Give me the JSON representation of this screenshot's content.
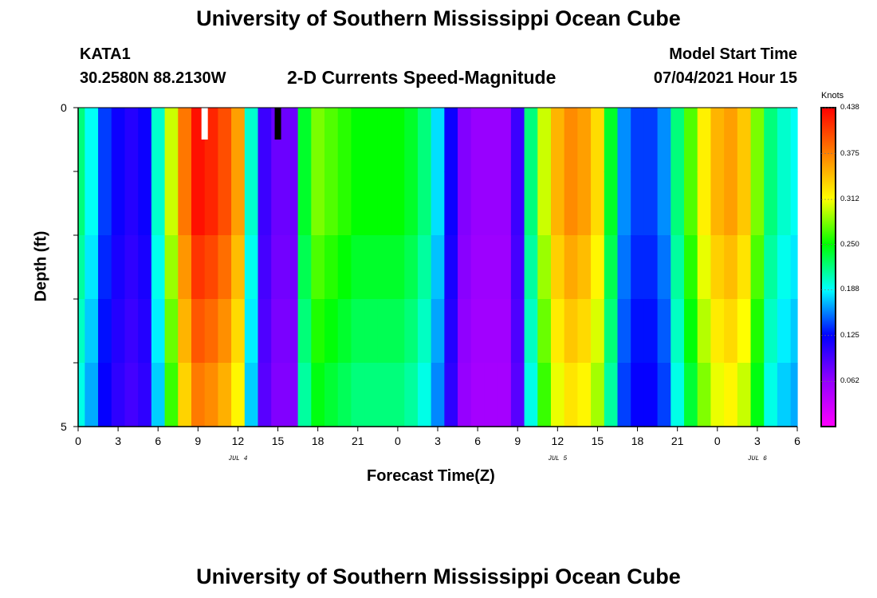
{
  "page": {
    "title_top": "University of Southern Mississippi Ocean Cube",
    "title_bottom": "University of Southern Mississippi Ocean Cube",
    "station_id": "KATA1",
    "coordinates": "30.2580N  88.2130W",
    "product": "2-D Currents Speed-Magnitude",
    "model_start_label": "Model Start Time",
    "model_start_value": "07/04/2021 Hour 15"
  },
  "chart_data": {
    "type": "heatmap",
    "title": "2-D Currents Speed-Magnitude",
    "xlabel": "Forecast Time(Z)",
    "ylabel": "Depth (ft)",
    "x_hours": [
      0,
      1,
      2,
      3,
      4,
      5,
      6,
      7,
      8,
      9,
      10,
      11,
      12,
      13,
      14,
      15,
      16,
      17,
      18,
      19,
      20,
      21,
      22,
      23,
      24,
      25,
      26,
      27,
      28,
      29,
      30,
      31,
      32,
      33,
      34,
      35,
      36,
      37,
      38,
      39,
      40,
      41,
      42,
      43,
      44,
      45,
      46,
      47,
      48,
      49,
      50,
      51,
      52,
      53,
      54
    ],
    "x_range": [
      0,
      54
    ],
    "x_tick_hours": [
      0,
      3,
      6,
      9,
      12,
      15,
      18,
      21,
      24,
      27,
      30,
      33,
      36,
      39,
      42,
      45,
      48,
      51,
      54
    ],
    "x_tick_labels": [
      "0",
      "3",
      "6",
      "9",
      "12",
      "15",
      "18",
      "21",
      "0",
      "3",
      "6",
      "9",
      "12",
      "15",
      "18",
      "21",
      "0",
      "3",
      "6"
    ],
    "date_labels": [
      {
        "hour": 12,
        "text": "JUL 4"
      },
      {
        "hour": 36,
        "text": "JUL 5"
      },
      {
        "hour": 51,
        "text": "JUL 6"
      }
    ],
    "y_range": [
      0,
      5
    ],
    "y_tick_labels": [
      "0",
      "5"
    ],
    "y_minor_ticks": [
      1,
      2,
      3,
      4
    ],
    "depth_rows": 5,
    "speed_profile_knots": [
      0.22,
      0.19,
      0.14,
      0.12,
      0.11,
      0.12,
      0.2,
      0.3,
      0.38,
      0.43,
      0.42,
      0.4,
      0.36,
      0.2,
      0.1,
      0.08,
      0.08,
      0.24,
      0.28,
      0.27,
      0.26,
      0.25,
      0.25,
      0.25,
      0.25,
      0.24,
      0.22,
      0.18,
      0.12,
      0.07,
      0.06,
      0.06,
      0.06,
      0.1,
      0.22,
      0.3,
      0.35,
      0.37,
      0.36,
      0.33,
      0.24,
      0.16,
      0.14,
      0.14,
      0.16,
      0.22,
      0.27,
      0.32,
      0.35,
      0.36,
      0.34,
      0.28,
      0.22,
      0.2,
      0.19
    ],
    "depth_factors": [
      1.0,
      1.0,
      0.96,
      0.92,
      0.88
    ],
    "markers": [
      {
        "hour": 9.5,
        "color": "#ffffff"
      },
      {
        "hour": 15,
        "color": "#000000"
      }
    ],
    "colorbar": {
      "label": "Knots",
      "min": 0.0,
      "max": 0.438,
      "tick_values": [
        0.062,
        0.125,
        0.188,
        0.25,
        0.312,
        0.375,
        0.438
      ],
      "tick_labels": [
        "0.062",
        "0.125",
        "0.188",
        "0.250",
        "0.312",
        "0.375",
        "0.438"
      ],
      "color_stops": [
        "#ff00ff",
        "#9400ff",
        "#0000ff",
        "#00ffff",
        "#00ff00",
        "#ffff00",
        "#ff8000",
        "#ff0000"
      ]
    }
  }
}
